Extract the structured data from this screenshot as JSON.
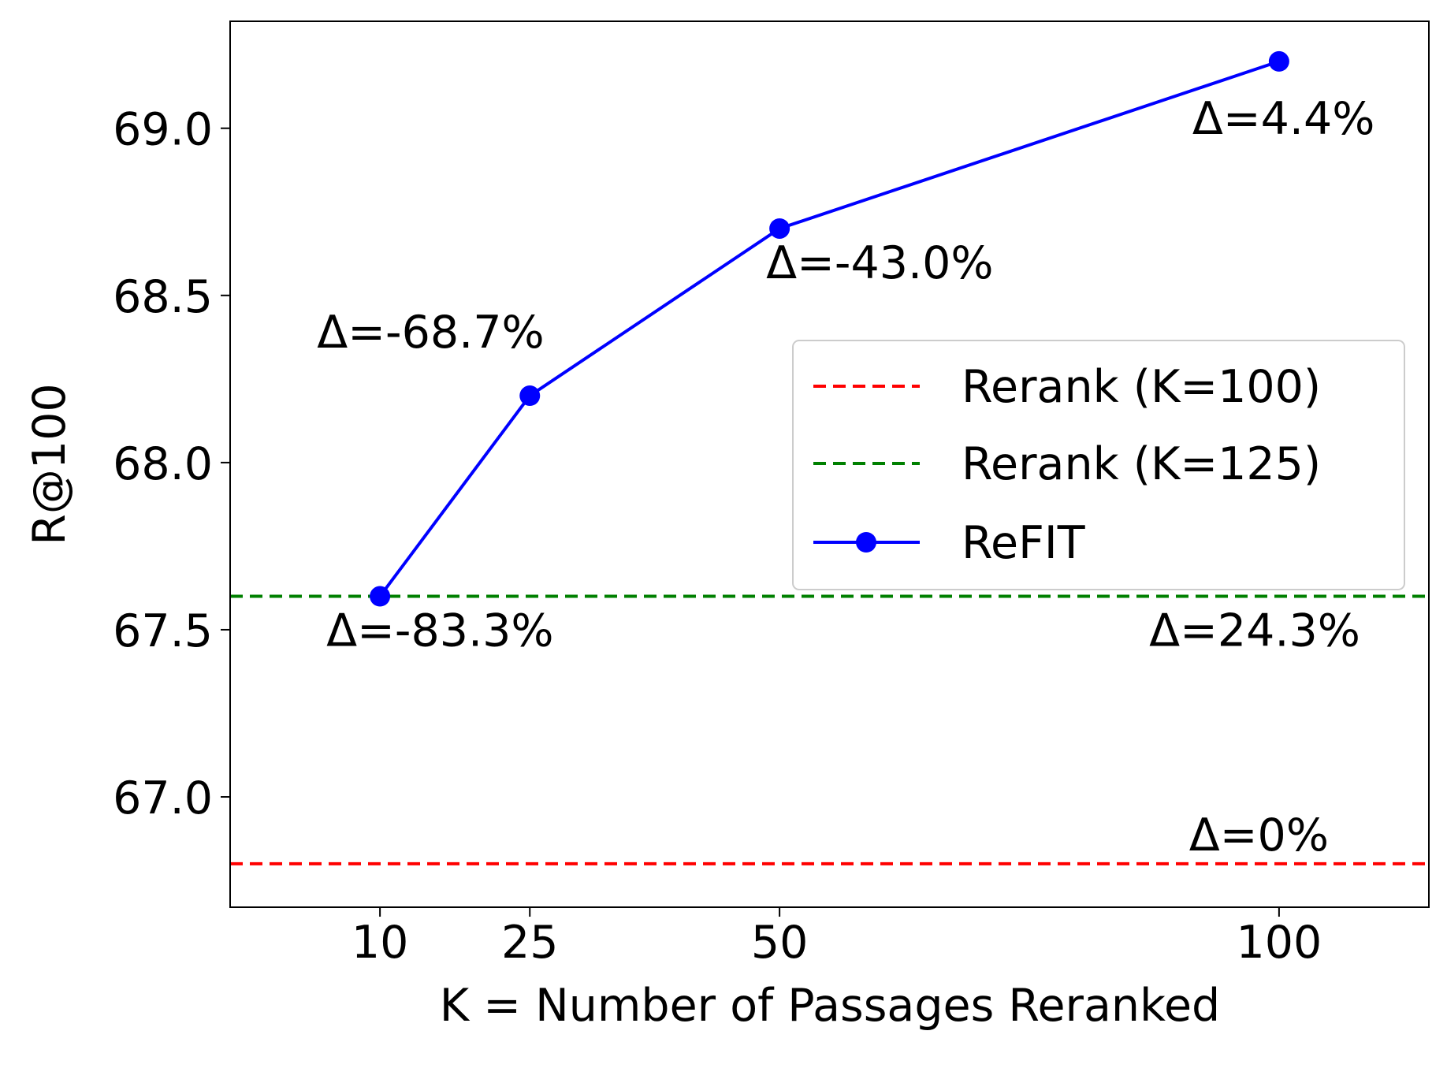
{
  "chart_data": {
    "type": "line",
    "xlabel": "K = Number of Passages Reranked",
    "ylabel": "R@100",
    "xlim": [
      -5,
      115
    ],
    "ylim": [
      66.67,
      69.32
    ],
    "x_ticks": [
      {
        "value": 10,
        "label": "10"
      },
      {
        "value": 25,
        "label": "25"
      },
      {
        "value": 50,
        "label": "50"
      },
      {
        "value": 100,
        "label": "100"
      }
    ],
    "y_ticks": [
      {
        "value": 67.0,
        "label": "67.0"
      },
      {
        "value": 67.5,
        "label": "67.5"
      },
      {
        "value": 68.0,
        "label": "68.0"
      },
      {
        "value": 68.5,
        "label": "68.5"
      },
      {
        "value": 69.0,
        "label": "69.0"
      }
    ],
    "grid": false,
    "legend_position": "right, middle",
    "series": [
      {
        "name": "Rerank (K=100)",
        "kind": "hline",
        "y": 66.8,
        "color": "#ff0000",
        "style": "dashed",
        "annotation": {
          "text": "Δ=0%",
          "x": 91,
          "y": 66.8
        }
      },
      {
        "name": "Rerank (K=125)",
        "kind": "hline",
        "y": 67.6,
        "color": "#008000",
        "style": "dashed",
        "annotation": {
          "text": "Δ=24.3%",
          "x": 87,
          "y": 67.6
        }
      },
      {
        "name": "ReFIT",
        "kind": "line",
        "color": "#0000ff",
        "marker": "circle",
        "x": [
          10,
          25,
          50,
          100
        ],
        "y": [
          67.6,
          68.2,
          68.7,
          69.2
        ],
        "annotations": [
          {
            "text": "Δ=-83.3%",
            "x": 10,
            "y": 67.6
          },
          {
            "text": "Δ=-68.7%",
            "x": 25,
            "y": 68.2
          },
          {
            "text": "Δ=-43.0%",
            "x": 50,
            "y": 68.7
          },
          {
            "text": "Δ=4.4%",
            "x": 100,
            "y": 69.2
          }
        ]
      }
    ]
  }
}
